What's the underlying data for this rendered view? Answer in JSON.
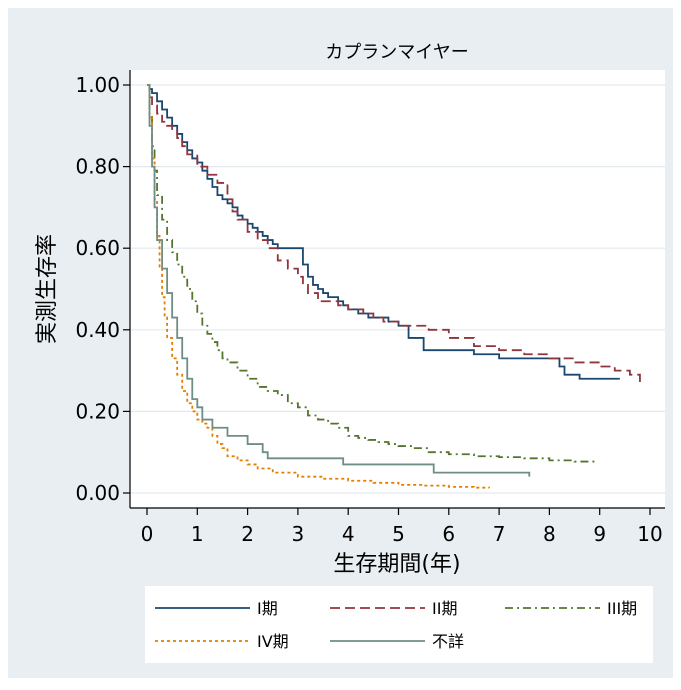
{
  "chart_data": {
    "type": "line",
    "step": true,
    "title": "カプランマイヤー",
    "xlabel": "生存期間(年)",
    "ylabel": "実測生存率",
    "xlim": [
      0,
      10
    ],
    "ylim": [
      0,
      1
    ],
    "xticks": [
      "0",
      "1",
      "2",
      "3",
      "4",
      "5",
      "6",
      "7",
      "8",
      "9",
      "10"
    ],
    "yticks": [
      "0.00",
      "0.20",
      "0.40",
      "0.60",
      "0.80",
      "1.00"
    ],
    "grid": true,
    "legend_position": "bottom",
    "colors": {
      "background": "#e8eef1",
      "plot_background": "#ffffff",
      "grid": "#e3eaee"
    },
    "series": [
      {
        "name": "I期",
        "color": "#1a476f",
        "dash": "solid",
        "x": [
          0,
          0.05,
          0.1,
          0.2,
          0.3,
          0.4,
          0.5,
          0.6,
          0.7,
          0.8,
          0.9,
          1.0,
          1.1,
          1.2,
          1.3,
          1.4,
          1.5,
          1.6,
          1.7,
          1.8,
          1.9,
          2.0,
          2.1,
          2.2,
          2.3,
          2.4,
          2.5,
          2.6,
          2.7,
          2.8,
          2.9,
          3.0,
          3.1,
          3.2,
          3.3,
          3.4,
          3.5,
          3.6,
          3.7,
          3.8,
          3.9,
          4.0,
          4.2,
          4.4,
          4.6,
          4.8,
          5.0,
          5.2,
          5.5,
          6.0,
          6.5,
          7.0,
          7.5,
          8.0,
          8.2,
          8.3,
          8.6,
          9.0,
          9.4
        ],
        "y": [
          1.0,
          0.99,
          0.98,
          0.96,
          0.94,
          0.92,
          0.9,
          0.88,
          0.86,
          0.84,
          0.82,
          0.81,
          0.79,
          0.77,
          0.75,
          0.73,
          0.72,
          0.71,
          0.7,
          0.68,
          0.67,
          0.66,
          0.65,
          0.64,
          0.63,
          0.62,
          0.61,
          0.6,
          0.6,
          0.6,
          0.6,
          0.6,
          0.56,
          0.53,
          0.51,
          0.5,
          0.49,
          0.48,
          0.48,
          0.47,
          0.46,
          0.45,
          0.44,
          0.43,
          0.43,
          0.42,
          0.41,
          0.38,
          0.35,
          0.35,
          0.34,
          0.33,
          0.33,
          0.33,
          0.31,
          0.29,
          0.28,
          0.28,
          0.28
        ]
      },
      {
        "name": "II期",
        "color": "#90353b",
        "dash": "dashed",
        "x": [
          0,
          0.05,
          0.1,
          0.2,
          0.3,
          0.4,
          0.5,
          0.6,
          0.7,
          0.8,
          1.0,
          1.2,
          1.4,
          1.6,
          1.7,
          1.8,
          2.0,
          2.2,
          2.4,
          2.6,
          2.8,
          3.0,
          3.1,
          3.2,
          3.4,
          3.6,
          3.8,
          4.0,
          4.3,
          4.5,
          4.7,
          5.0,
          5.3,
          5.6,
          6.0,
          6.5,
          7.0,
          7.5,
          8.0,
          8.5,
          9.0,
          9.3,
          9.6,
          9.8
        ],
        "y": [
          1.0,
          0.97,
          0.95,
          0.93,
          0.91,
          0.9,
          0.89,
          0.87,
          0.85,
          0.83,
          0.8,
          0.78,
          0.76,
          0.72,
          0.69,
          0.67,
          0.64,
          0.62,
          0.6,
          0.57,
          0.55,
          0.53,
          0.51,
          0.49,
          0.47,
          0.47,
          0.46,
          0.45,
          0.44,
          0.43,
          0.42,
          0.41,
          0.41,
          0.4,
          0.38,
          0.36,
          0.35,
          0.34,
          0.33,
          0.32,
          0.31,
          0.3,
          0.29,
          0.27
        ]
      },
      {
        "name": "III期",
        "color": "#55752f",
        "dash": "dashdot",
        "x": [
          0,
          0.05,
          0.1,
          0.15,
          0.2,
          0.3,
          0.4,
          0.5,
          0.6,
          0.7,
          0.8,
          0.9,
          1.0,
          1.1,
          1.2,
          1.3,
          1.4,
          1.5,
          1.6,
          1.8,
          2.0,
          2.2,
          2.4,
          2.6,
          2.8,
          3.0,
          3.2,
          3.4,
          3.6,
          3.8,
          4.0,
          4.2,
          4.4,
          4.6,
          4.8,
          5.0,
          5.3,
          5.6,
          6.0,
          6.5,
          7.0,
          7.5,
          8.0,
          8.5,
          8.9
        ],
        "y": [
          1.0,
          0.93,
          0.85,
          0.79,
          0.73,
          0.67,
          0.62,
          0.59,
          0.56,
          0.53,
          0.5,
          0.47,
          0.44,
          0.41,
          0.39,
          0.37,
          0.35,
          0.33,
          0.32,
          0.3,
          0.28,
          0.26,
          0.25,
          0.24,
          0.22,
          0.21,
          0.19,
          0.18,
          0.17,
          0.16,
          0.14,
          0.135,
          0.13,
          0.125,
          0.12,
          0.115,
          0.11,
          0.1,
          0.095,
          0.09,
          0.088,
          0.085,
          0.08,
          0.077,
          0.075
        ]
      },
      {
        "name": "IV期",
        "color": "#e37e00",
        "dash": "dotted",
        "x": [
          0,
          0.05,
          0.1,
          0.15,
          0.2,
          0.25,
          0.3,
          0.35,
          0.4,
          0.5,
          0.6,
          0.7,
          0.8,
          0.9,
          1.0,
          1.1,
          1.2,
          1.3,
          1.4,
          1.5,
          1.6,
          1.8,
          2.0,
          2.2,
          2.5,
          3.0,
          3.5,
          4.0,
          4.5,
          5.0,
          5.5,
          6.0,
          6.5,
          6.8
        ],
        "y": [
          1.0,
          0.92,
          0.82,
          0.72,
          0.63,
          0.55,
          0.48,
          0.43,
          0.38,
          0.33,
          0.29,
          0.25,
          0.22,
          0.2,
          0.18,
          0.17,
          0.16,
          0.14,
          0.12,
          0.11,
          0.09,
          0.08,
          0.07,
          0.06,
          0.05,
          0.04,
          0.035,
          0.03,
          0.025,
          0.02,
          0.018,
          0.015,
          0.013,
          0.012
        ]
      },
      {
        "name": "不詳",
        "color": "#6e8e84",
        "dash": "solid",
        "x": [
          0,
          0.05,
          0.1,
          0.15,
          0.2,
          0.3,
          0.4,
          0.5,
          0.6,
          0.7,
          0.8,
          0.9,
          1.0,
          1.1,
          1.3,
          1.6,
          2.0,
          2.3,
          2.4,
          3.0,
          3.5,
          3.9,
          4.5,
          5.0,
          5.7,
          6.5,
          7.0,
          7.6
        ],
        "y": [
          1.0,
          0.9,
          0.8,
          0.7,
          0.62,
          0.55,
          0.49,
          0.43,
          0.38,
          0.33,
          0.28,
          0.23,
          0.21,
          0.18,
          0.16,
          0.14,
          0.12,
          0.1,
          0.085,
          0.085,
          0.085,
          0.07,
          0.07,
          0.07,
          0.05,
          0.05,
          0.05,
          0.04
        ]
      }
    ]
  }
}
